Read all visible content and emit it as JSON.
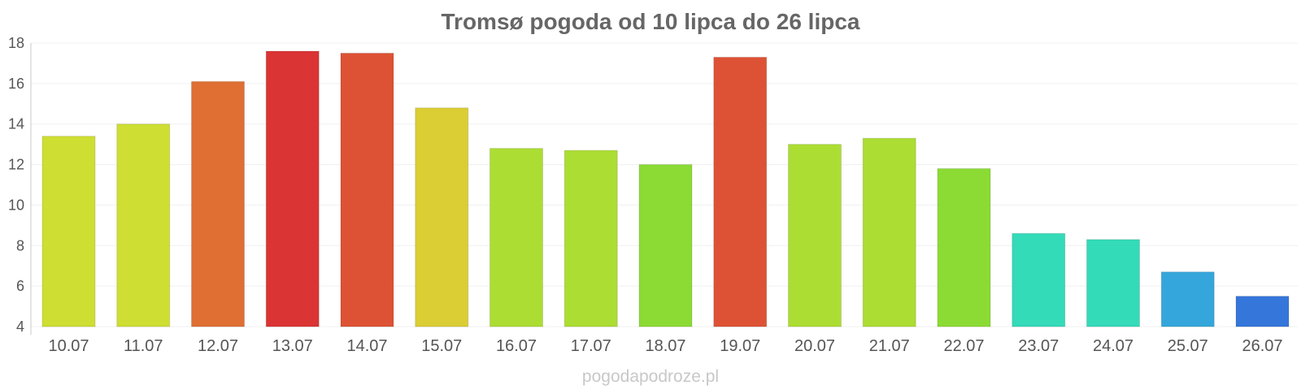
{
  "chart_data": {
    "type": "bar",
    "title": "Tromsø pogoda od 10 lipca do 26 lipca",
    "xlabel": "",
    "ylabel": "",
    "ylim": [
      4,
      18
    ],
    "yticks": [
      4,
      6,
      8,
      10,
      12,
      14,
      16,
      18
    ],
    "grid": true,
    "categories": [
      "10.07",
      "11.07",
      "12.07",
      "13.07",
      "14.07",
      "15.07",
      "16.07",
      "17.07",
      "18.07",
      "19.07",
      "20.07",
      "21.07",
      "22.07",
      "23.07",
      "24.07",
      "25.07",
      "26.07"
    ],
    "values": [
      13.4,
      14.0,
      16.1,
      17.6,
      17.5,
      14.8,
      12.8,
      12.7,
      12.0,
      17.3,
      13.0,
      13.3,
      11.8,
      8.6,
      8.3,
      6.7,
      5.5
    ],
    "colors": [
      "#cede32",
      "#cede32",
      "#df6f33",
      "#db3434",
      "#dd5234",
      "#dbcd34",
      "#acdd33",
      "#acdd33",
      "#8bdb34",
      "#dd5234",
      "#acdd33",
      "#acdd33",
      "#8bdb34",
      "#33dbb8",
      "#33dbb8",
      "#35a6db",
      "#3576db"
    ]
  },
  "watermark": "pogodapodroze.pl"
}
